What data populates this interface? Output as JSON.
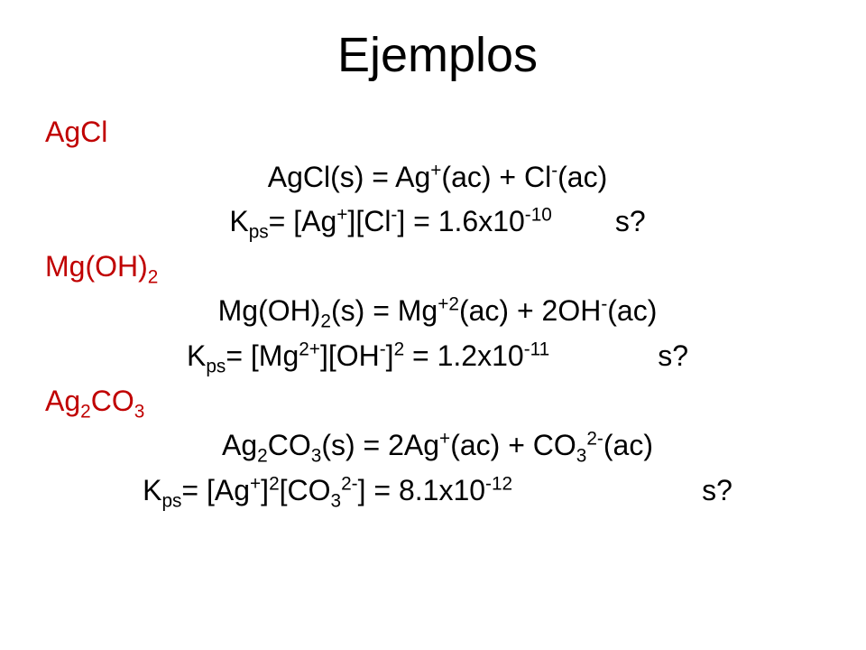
{
  "title": "Ejemplos",
  "colors": {
    "compound": "#c00000",
    "text": "#000000",
    "background": "#ffffff"
  },
  "typography": {
    "title_fontsize": 54,
    "body_fontsize": 32,
    "font_family": "Arial"
  },
  "examples": [
    {
      "compound_html": "AgCl",
      "equation_html": "AgCl(s) = Ag<sup>+</sup>(ac) + Cl<sup>-</sup>(ac)",
      "ksp_html": "K<sub>ps</sub>= [Ag<sup>+</sup>][Cl<sup>-</sup>] = 1.6x10<sup>-10</sup><span class=\"sgap1\"></span>s?"
    },
    {
      "compound_html": "Mg(OH)<sub>2</sub>",
      "equation_html": "Mg(OH)<sub>2</sub>(s) = Mg<sup>+2</sup>(ac) + 2OH<sup>-</sup>(ac)",
      "ksp_html": "K<sub>ps</sub>= [Mg<sup>2+</sup>][OH<sup>-</sup>]<sup>2</sup>  = 1.2x10<sup>-11</sup><span class=\"sgap2\"></span>s?"
    },
    {
      "compound_html": "Ag<sub>2</sub>CO<sub>3</sub>",
      "equation_html": "Ag<sub>2</sub>CO<sub>3</sub>(s) = 2Ag<sup>+</sup>(ac) + CO<sub>3</sub><sup>2-</sup>(ac)",
      "ksp_html": "K<sub>ps</sub>= [Ag<sup>+</sup>]<sup>2</sup>[CO<sub>3</sub><sup>2-</sup>] = 8.1x10<sup>-12</sup><span class=\"sgap3\"></span>s?"
    }
  ]
}
